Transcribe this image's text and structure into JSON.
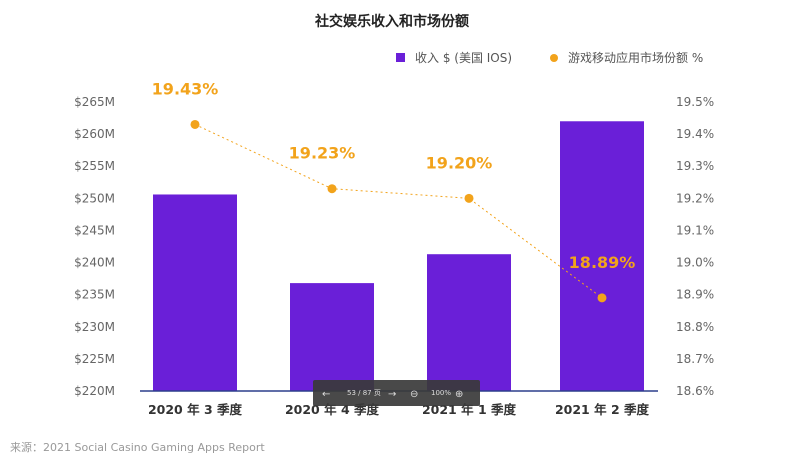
{
  "chart_data": {
    "type": "bar",
    "title": "社交娱乐收入和市场份额",
    "categories": [
      "2020 年 3 季度",
      "2020 年 4 季度",
      "2021 年 1 季度",
      "2021 年 2 季度"
    ],
    "series": [
      {
        "name": "收入 $ (美国 IOS)",
        "kind": "bar",
        "axis": "left",
        "color": "#6a1fd8",
        "values": [
          250.6,
          236.8,
          241.3,
          262.0
        ]
      },
      {
        "name": "游戏移动应用市场份额 %",
        "kind": "line",
        "axis": "right",
        "color": "#f2a31b",
        "values": [
          19.43,
          19.23,
          19.2,
          18.89
        ],
        "labels": [
          "19.43%",
          "19.23%",
          "19.20%",
          "18.89%"
        ]
      }
    ],
    "y_left": {
      "min": 220,
      "max": 265,
      "ticks": [
        "$220M",
        "$225M",
        "$230M",
        "$235M",
        "$240M",
        "$245M",
        "$250M",
        "$255M",
        "$260M",
        "$265M"
      ]
    },
    "y_right": {
      "min": 18.6,
      "max": 19.5,
      "ticks": [
        "18.6%",
        "18.7%",
        "18.8%",
        "18.9%",
        "19.0%",
        "19.1%",
        "19.2%",
        "19.3%",
        "19.4%",
        "19.5%"
      ]
    },
    "legend": [
      "收入 $ (美国 IOS)",
      "游戏移动应用市场份额 %"
    ],
    "legend_position": "top-right"
  },
  "source": "来源：2021 Social Casino Gaming Apps Report",
  "pager": {
    "page": "53 / 87 页",
    "zoom": "100%"
  },
  "colors": {
    "bar": "#6a1fd8",
    "line": "#f2a31b",
    "pager_bg": "#3a3a3a"
  }
}
